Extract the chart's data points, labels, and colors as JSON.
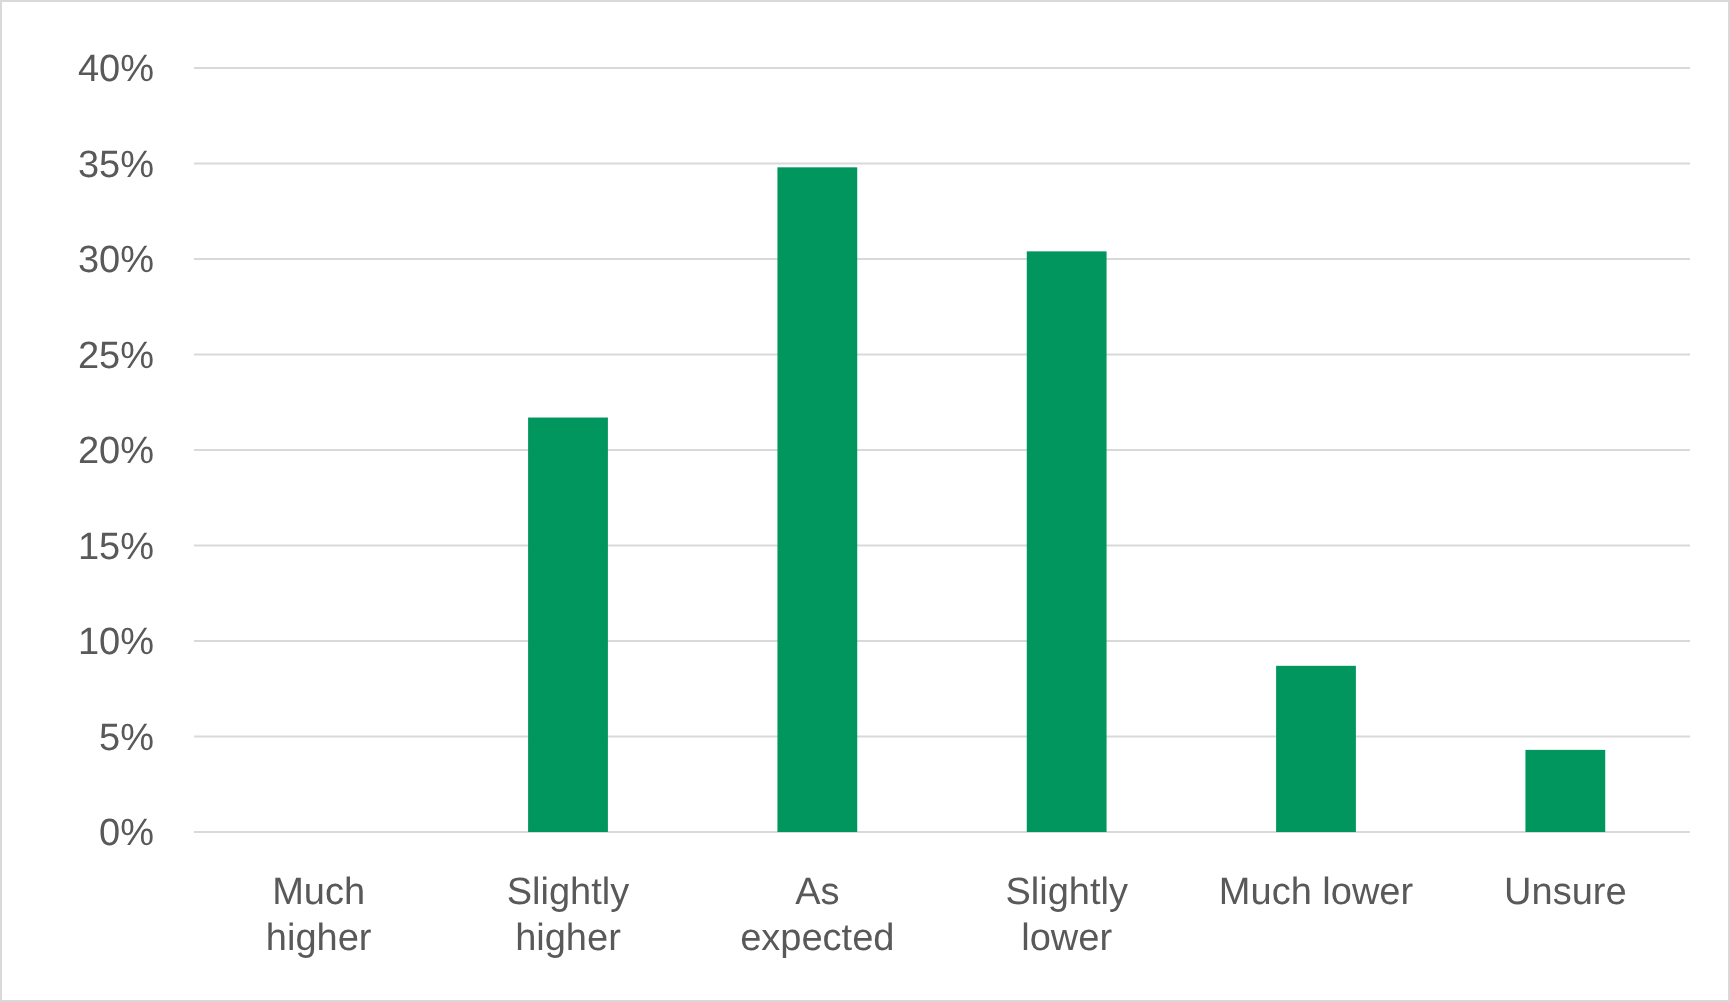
{
  "chart_data": {
    "type": "bar",
    "categories": [
      "Much higher",
      "Slightly higher",
      "As expected",
      "Slightly lower",
      "Much lower",
      "Unsure"
    ],
    "values": [
      0,
      21.7,
      34.8,
      30.4,
      8.7,
      4.3
    ],
    "color": "#00965e",
    "ylim": [
      0,
      40
    ],
    "yticks": [
      {
        "value": 0,
        "label": "0%"
      },
      {
        "value": 5,
        "label": "5%"
      },
      {
        "value": 10,
        "label": "10%"
      },
      {
        "value": 15,
        "label": "15%"
      },
      {
        "value": 20,
        "label": "20%"
      },
      {
        "value": 25,
        "label": "25%"
      },
      {
        "value": 30,
        "label": "30%"
      },
      {
        "value": 35,
        "label": "35%"
      },
      {
        "value": 40,
        "label": "40%"
      }
    ],
    "grid": "y"
  }
}
